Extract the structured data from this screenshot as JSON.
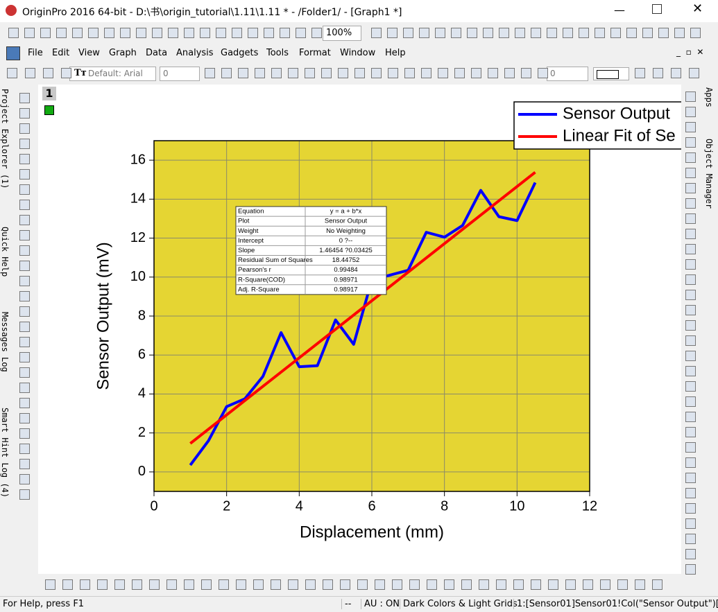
{
  "window": {
    "title": "OriginPro 2016 64-bit - D:\\书\\origin_tutorial\\1.11\\1.11 * - /Folder1/ - [Graph1 *]",
    "zoom": "100%"
  },
  "menu": [
    "File",
    "Edit",
    "View",
    "Graph",
    "Data",
    "Analysis",
    "Gadgets",
    "Tools",
    "Format",
    "Window",
    "Help"
  ],
  "format_bar": {
    "font": "Default: Arial",
    "size": "0",
    "rotation": "0"
  },
  "side_tabs_left": [
    "Project Explorer (1)",
    "Quick Help",
    "Messages Log",
    "Smart Hint Log (4)"
  ],
  "side_tabs_right": [
    "Apps",
    "Object Manager"
  ],
  "page_label": "1",
  "status_bar": [
    "For Help, press F1",
    "--",
    "AU : ON",
    "Dark Colors & Light Grids",
    "1:[Sensor01]Sensor01!Col(\"Sensor Output\")["
  ],
  "chart_data": {
    "type": "line",
    "x_label": "Displacement (mm)",
    "y_label": "Sensor Output (mV)",
    "xlim": [
      0,
      12
    ],
    "ylim": [
      -1,
      17
    ],
    "xticks": [
      0,
      2,
      4,
      6,
      8,
      10,
      12
    ],
    "yticks": [
      0,
      2,
      4,
      6,
      8,
      10,
      12,
      14,
      16
    ],
    "grid": true,
    "plot_background": "#e5d533",
    "legend": "top-right",
    "series": [
      {
        "name": "Sensor Output",
        "color": "#0000ff",
        "x": [
          1,
          1.5,
          2,
          2.5,
          3,
          3.5,
          4,
          4.5,
          5,
          5.5,
          6,
          6.5,
          7,
          7.5,
          8,
          8.5,
          9,
          9.5,
          10,
          10.5
        ],
        "values": [
          0.35,
          1.6,
          3.35,
          3.75,
          4.9,
          7.15,
          5.4,
          5.45,
          7.8,
          6.55,
          9.85,
          10.1,
          10.35,
          12.3,
          12.05,
          12.65,
          14.45,
          13.1,
          12.9,
          14.85
        ]
      },
      {
        "name": "Linear Fit of Se",
        "color": "#ff0000",
        "x": [
          1,
          10.5
        ],
        "values": [
          1.46,
          15.38
        ]
      }
    ],
    "fit_table": {
      "rows": [
        [
          "Equation",
          "y = a + b*x"
        ],
        [
          "Plot",
          "Sensor Output"
        ],
        [
          "Weight",
          "No Weighting"
        ],
        [
          "Intercept",
          "0 ?--"
        ],
        [
          "Slope",
          "1.46454 ?0.03425"
        ],
        [
          "Residual Sum of Squares",
          "18.44752"
        ],
        [
          "Pearson's r",
          "0.99484"
        ],
        [
          "R-Square(COD)",
          "0.98971"
        ],
        [
          "Adj. R-Square",
          "0.98917"
        ]
      ]
    }
  }
}
